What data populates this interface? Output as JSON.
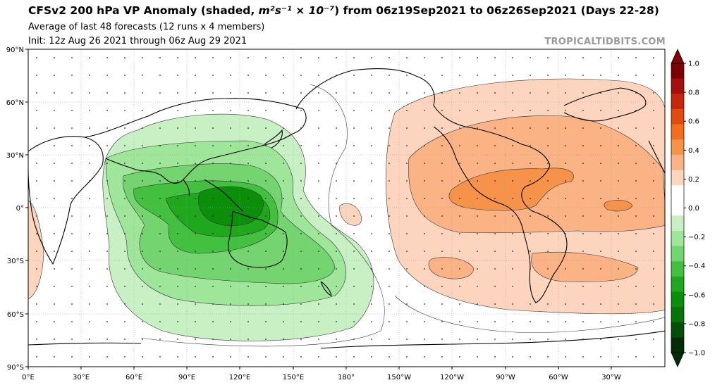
{
  "header": {
    "title_prefix": "CFSv2 200 hPa VP Anomaly (shaded, ",
    "title_unit": "m²s⁻¹ × 10⁻⁷",
    "title_suffix": ") from 06z19Sep2021 to 06z26Sep2021 (Days 22-28)",
    "subtitle_1": "Average of last 48 forecasts (12 runs x 4 members)",
    "subtitle_2": "Init: 12z Aug 26 2021 through 06z Aug 29 2021",
    "watermark": "TROPICALTIDBITS.COM"
  },
  "map": {
    "projection": "equirectangular, centered 180°",
    "lat_labels": [
      "90°N",
      "60°N",
      "30°N",
      "0°",
      "30°S",
      "60°S",
      "90°S"
    ],
    "lon_labels": [
      "0°E",
      "30°E",
      "60°E",
      "90°E",
      "120°E",
      "150°E",
      "180°",
      "150°W",
      "120°W",
      "90°W",
      "60°W",
      "30°W"
    ],
    "features": [
      {
        "name": "negative-vp-anomaly-maritime-continent",
        "sign": "negative",
        "center": "Indonesia / Maritime Continent"
      },
      {
        "name": "positive-vp-anomaly-americas",
        "sign": "positive",
        "center": "Central America / eastern Pacific"
      }
    ]
  },
  "colorbar": {
    "labels": [
      "1.0",
      "0.8",
      "0.6",
      "0.4",
      "0.2",
      "0.0",
      "−0.2",
      "−0.4",
      "−0.6",
      "−0.8",
      "−1.0"
    ],
    "colors_top_to_bottom": [
      "#7f0000",
      "#a50f0f",
      "#c8260c",
      "#e24b10",
      "#f26d1c",
      "#f7924a",
      "#fbb285",
      "#fdd5be",
      "#ffffff",
      "#ffffff",
      "#c9efc5",
      "#9fe59a",
      "#74d46f",
      "#44c040",
      "#1fa81e",
      "#0b8f0b",
      "#06740a",
      "#034f06",
      "#022d04"
    ]
  }
}
